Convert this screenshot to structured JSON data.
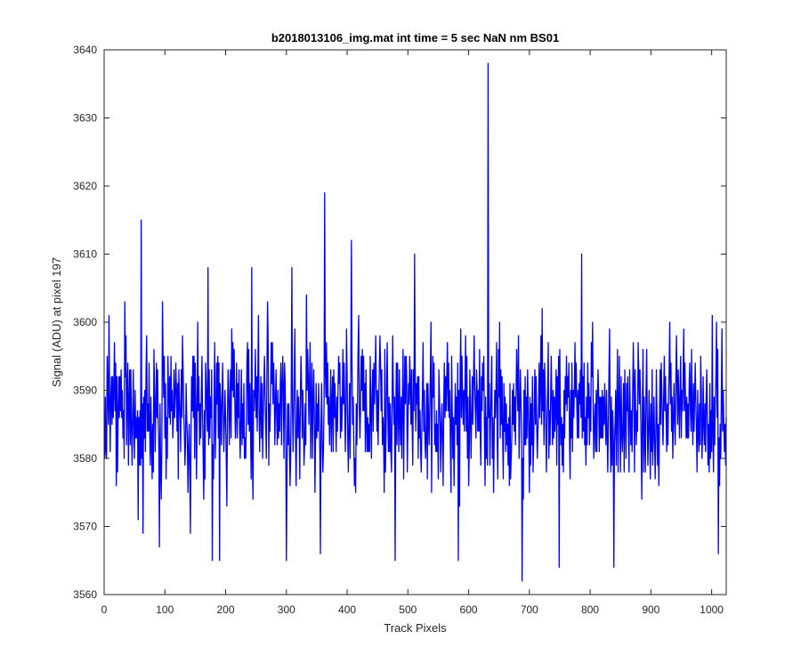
{
  "chart_data": {
    "type": "line",
    "title": "b2018013106_img.mat int time = 5 sec  NaN nm BS01",
    "xlabel": "Track Pixels",
    "ylabel": "Signal (ADU) at pixel 197",
    "xlim": [
      0,
      1024
    ],
    "ylim": [
      3560,
      3640
    ],
    "xticks": [
      0,
      100,
      200,
      300,
      400,
      500,
      600,
      700,
      800,
      900,
      1000
    ],
    "yticks": [
      3560,
      3570,
      3580,
      3590,
      3600,
      3610,
      3620,
      3630,
      3640
    ],
    "grid": false,
    "legend": "none",
    "series": [
      {
        "color": "#0000ff",
        "sample_count": 1024,
        "base_level": 3587,
        "noise_range": [
          3562,
          3638
        ],
        "peaks": [
          {
            "x": 3,
            "y": 3581
          },
          {
            "x": 8,
            "y": 3601
          },
          {
            "x": 20,
            "y": 3576
          },
          {
            "x": 34,
            "y": 3603
          },
          {
            "x": 56,
            "y": 3571
          },
          {
            "x": 61,
            "y": 3615
          },
          {
            "x": 64,
            "y": 3569
          },
          {
            "x": 91,
            "y": 3567
          },
          {
            "x": 96,
            "y": 3603
          },
          {
            "x": 142,
            "y": 3569
          },
          {
            "x": 171,
            "y": 3608
          },
          {
            "x": 178,
            "y": 3565
          },
          {
            "x": 190,
            "y": 3565
          },
          {
            "x": 243,
            "y": 3608
          },
          {
            "x": 300,
            "y": 3565
          },
          {
            "x": 309,
            "y": 3608
          },
          {
            "x": 356,
            "y": 3566
          },
          {
            "x": 363,
            "y": 3619
          },
          {
            "x": 407,
            "y": 3612
          },
          {
            "x": 479,
            "y": 3565
          },
          {
            "x": 511,
            "y": 3610
          },
          {
            "x": 583,
            "y": 3565
          },
          {
            "x": 632,
            "y": 3638
          },
          {
            "x": 688,
            "y": 3562
          },
          {
            "x": 749,
            "y": 3564
          },
          {
            "x": 786,
            "y": 3610
          },
          {
            "x": 839,
            "y": 3564
          },
          {
            "x": 1001,
            "y": 3601
          },
          {
            "x": 1011,
            "y": 3566
          },
          {
            "x": 1024,
            "y": 3586
          }
        ]
      }
    ]
  }
}
